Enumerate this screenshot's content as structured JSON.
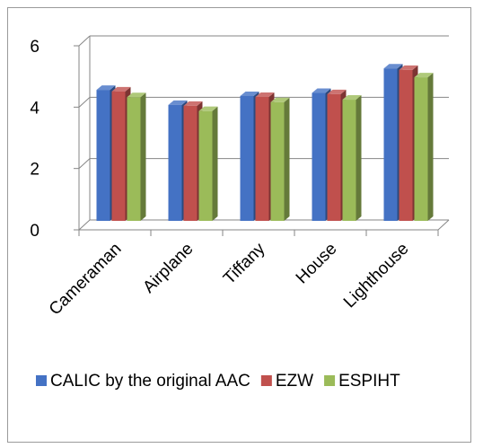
{
  "chart_data": {
    "type": "bar",
    "categories": [
      "Cameraman",
      "Airplane",
      "Tiffany",
      "House",
      "Lighthouse"
    ],
    "series": [
      {
        "name": "CALIC by the original AAC",
        "values": [
          4.27,
          3.78,
          4.07,
          4.17,
          4.97
        ],
        "color": "#4472c4"
      },
      {
        "name": "EZW",
        "values": [
          4.22,
          3.75,
          4.04,
          4.13,
          4.92
        ],
        "color": "#c0504d"
      },
      {
        "name": "ESPIHT",
        "values": [
          4.03,
          3.58,
          3.87,
          3.95,
          4.68
        ],
        "color": "#9bbb59"
      }
    ],
    "ylim": [
      0,
      6
    ],
    "yticks": [
      0,
      2,
      4,
      6
    ],
    "grid": true,
    "legend_position": "bottom",
    "style": "3d-clustered-column"
  }
}
